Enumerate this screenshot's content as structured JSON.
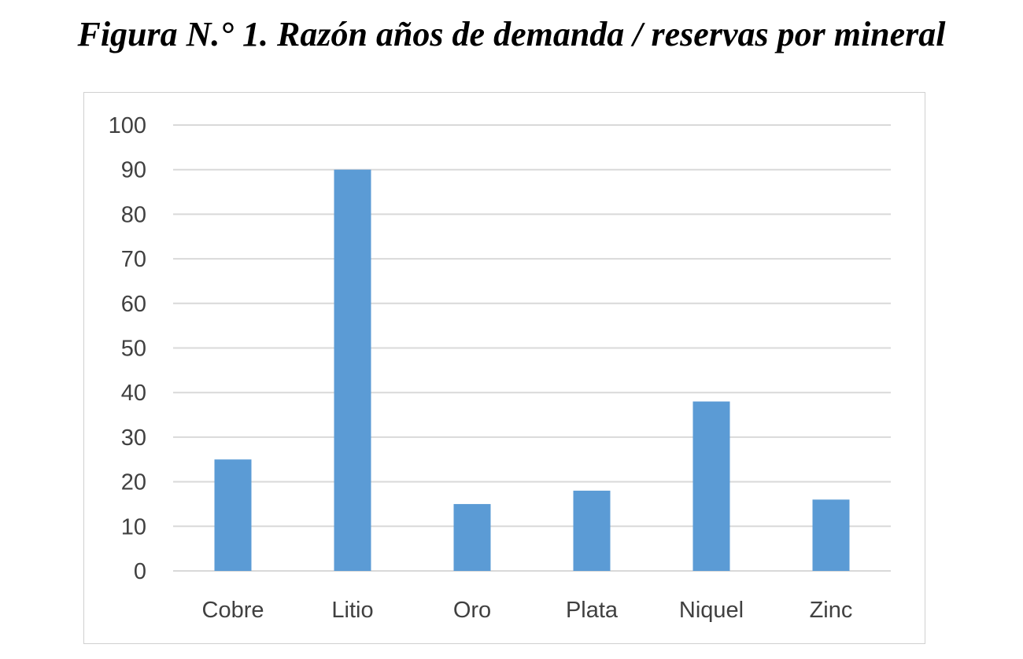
{
  "figure": {
    "title": "Figura N.° 1. Razón años de demanda / reservas por mineral"
  },
  "chart_data": {
    "type": "bar",
    "title": "",
    "xlabel": "",
    "ylabel": "",
    "categories": [
      "Cobre",
      "Litio",
      "Oro",
      "Plata",
      "Niquel",
      "Zinc"
    ],
    "values": [
      25,
      90,
      15,
      18,
      38,
      16
    ],
    "ylim": [
      0,
      100
    ],
    "yticks": [
      0,
      10,
      20,
      30,
      40,
      50,
      60,
      70,
      80,
      90,
      100
    ],
    "grid": "horizontal",
    "legend": "none",
    "colors": {
      "bar": "#5b9bd5",
      "grid": "#d9d9d9",
      "tick_text": "#404040"
    }
  }
}
